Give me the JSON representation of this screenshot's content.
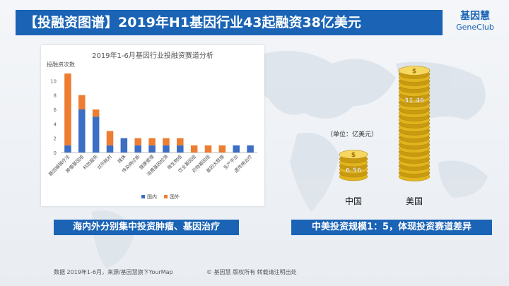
{
  "header": {
    "title": "【投融资图谱】2019年H1基因行业43起融资38亿美元",
    "logo_cn": "基因慧",
    "logo_en": "GeneClub"
  },
  "chart_data": [
    {
      "type": "bar",
      "stacked": true,
      "title": "2019年1-6月基因行业投融资赛道分析",
      "ylabel": "投融资次数",
      "xlabel": "",
      "ylim": [
        0,
        12
      ],
      "yticks": [
        0,
        2,
        4,
        6,
        8,
        10
      ],
      "grid": false,
      "legend_position": "bottom",
      "categories": [
        "基因编辑疗法",
        "肿瘤基因组",
        "科技服务",
        "试剂耗材",
        "媒体",
        "传染病诊断",
        "健康管理",
        "消费基因检测",
        "微生物组",
        "农业基因组",
        "药物基因组",
        "基因大数据",
        "生产平台",
        "遗传病治疗"
      ],
      "series": [
        {
          "name": "国内",
          "color": "#3b6ec4",
          "values": [
            1,
            6,
            5,
            1,
            2,
            1,
            1,
            1,
            1,
            0,
            0,
            0,
            1,
            1
          ]
        },
        {
          "name": "国外",
          "color": "#ed7d31",
          "values": [
            10,
            2,
            1,
            2,
            0,
            1,
            1,
            1,
            1,
            1,
            1,
            1,
            0,
            0
          ]
        }
      ]
    },
    {
      "type": "bar",
      "unit": "（单位：亿美元）",
      "categories": [
        "中国",
        "美国"
      ],
      "values": [
        6.56,
        31.46
      ],
      "value_labels": [
        "6.56",
        "31.46"
      ]
    }
  ],
  "captions": {
    "left": "海内外分别集中投资肿瘤、基因治疗",
    "right": "中美投资规模1：5，体现投资赛道差异"
  },
  "footer": {
    "source": "数据 2019年1-6月，来源/基因慧旗下YourMap",
    "copyright": "© 基因慧 版权所有 转载请注明出处"
  },
  "colors": {
    "brand": "#1a63b5",
    "domestic": "#3b6ec4",
    "foreign": "#ed7d31",
    "coin": "#e0b41c"
  }
}
